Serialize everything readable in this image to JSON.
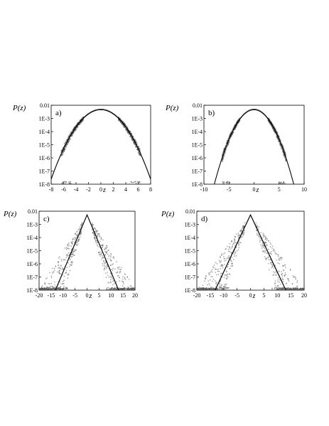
{
  "figure": {
    "background": "#ffffff",
    "ink_color": "#000000",
    "scatter_color": "#555555"
  },
  "chart_data": [
    {
      "type": "scatter",
      "panel_label": "a)",
      "ylabel": "P(z)",
      "xlabel": "z",
      "xlim": [
        -8,
        8
      ],
      "xticks": [
        -8,
        -6,
        -4,
        -2,
        0,
        2,
        4,
        6,
        8
      ],
      "ylim": [
        1e-08,
        0.01
      ],
      "y_scale": "log",
      "yticks": [
        "1E-8",
        "1E-7",
        "1E-6",
        "1E-5",
        "1E-4",
        "1E-3",
        "0.01"
      ],
      "series": [
        {
          "kind": "fit_curves",
          "sigma": 1.62,
          "peak": 0.0045,
          "points": [
            [
              -5.9,
              1e-08
            ],
            [
              -4,
              2e-05
            ],
            [
              -2,
              0.00211
            ],
            [
              0,
              0.0045
            ],
            [
              2,
              0.00211
            ],
            [
              4,
              2e-05
            ],
            [
              5.9,
              1e-08
            ]
          ]
        },
        {
          "kind": "scatter",
          "sigma": 1.62,
          "peak": 0.0045,
          "points": [
            [
              -5.5,
              5e-08
            ],
            [
              -5,
              2e-07
            ],
            [
              -4.5,
              2.5e-06
            ],
            [
              4.5,
              2.5e-06
            ],
            [
              5,
              2e-07
            ],
            [
              5.5,
              5e-08
            ],
            [
              6,
              1.5e-08
            ]
          ]
        }
      ]
    },
    {
      "type": "scatter",
      "panel_label": "b)",
      "ylabel": "P(z)",
      "xlabel": "z",
      "xlim": [
        -10,
        10
      ],
      "xticks": [
        -10,
        -5,
        0,
        5,
        10
      ],
      "ylim": [
        1e-08,
        0.01
      ],
      "y_scale": "log",
      "yticks": [
        "1E-8",
        "1E-7",
        "1E-6",
        "1E-5",
        "1E-4",
        "1E-3",
        "0.01"
      ],
      "series": [
        {
          "kind": "fit_curves",
          "sigma": 1.55,
          "peak": 0.0045,
          "points": [
            [
              -5.7,
              1e-08
            ],
            [
              -4,
              1.6e-05
            ],
            [
              -2,
              0.00198
            ],
            [
              0,
              0.0045
            ],
            [
              2,
              0.00198
            ],
            [
              4,
              1.6e-05
            ],
            [
              5.7,
              1e-08
            ]
          ]
        },
        {
          "kind": "scatter",
          "sigma": 1.55,
          "peak": 0.0045,
          "points": [
            [
              -6,
              1.5e-08
            ],
            [
              -5,
              2e-07
            ],
            [
              -4.5,
              1.5e-06
            ],
            [
              4.5,
              1.5e-06
            ],
            [
              5,
              2e-07
            ],
            [
              6,
              1.5e-08
            ]
          ]
        }
      ]
    },
    {
      "type": "scatter",
      "panel_label": "c)",
      "ylabel": "P(z)",
      "xlabel": "z",
      "xlim": [
        -20,
        20
      ],
      "xticks": [
        -20,
        -15,
        -10,
        -5,
        0,
        5,
        10,
        15,
        20
      ],
      "ylim": [
        1e-08,
        0.01
      ],
      "y_scale": "log",
      "yticks": [
        "1E-8",
        "1E-7",
        "1E-6",
        "1E-5",
        "1E-4",
        "1E-3",
        "0.01"
      ],
      "series": [
        {
          "kind": "fit_curves",
          "model": "exponential",
          "scale": 1.0,
          "peak": 0.005,
          "points": [
            [
              -11.3,
              1e-08
            ],
            [
              -5,
              5e-05
            ],
            [
              -2,
              0.0009
            ],
            [
              0,
              0.005
            ],
            [
              2,
              0.0009
            ],
            [
              5,
              5e-05
            ],
            [
              11.3,
              1e-08
            ]
          ]
        },
        {
          "kind": "scatter",
          "model": "exponential",
          "scale": 1.0,
          "peak": 0.005,
          "points": [
            [
              -17,
              1e-08
            ],
            [
              -12,
              4e-08
            ],
            [
              -9,
              2e-07
            ],
            [
              9,
              2e-07
            ],
            [
              12,
              4e-08
            ],
            [
              17,
              1e-08
            ]
          ]
        }
      ]
    },
    {
      "type": "scatter",
      "panel_label": "d)",
      "ylabel": "P(z)",
      "xlabel": "z",
      "xlim": [
        -20,
        20
      ],
      "xticks": [
        -20,
        -15,
        -10,
        -5,
        0,
        5,
        10,
        15,
        20
      ],
      "ylim": [
        1e-08,
        0.01
      ],
      "y_scale": "log",
      "yticks": [
        "1E-8",
        "1E-7",
        "1E-6",
        "1E-5",
        "1E-4",
        "1E-3",
        "0.01"
      ],
      "series": [
        {
          "kind": "fit_curves",
          "model": "exponential",
          "scale": 1.0,
          "peak": 0.005,
          "points": [
            [
              -11.3,
              1e-08
            ],
            [
              -5,
              5e-05
            ],
            [
              -2,
              0.0009
            ],
            [
              0,
              0.005
            ],
            [
              2,
              0.0009
            ],
            [
              5,
              5e-05
            ],
            [
              11.3,
              1e-08
            ]
          ]
        },
        {
          "kind": "scatter",
          "model": "exponential",
          "scale": 1.0,
          "peak": 0.005,
          "points": [
            [
              -18,
              1e-08
            ],
            [
              -13,
              3e-08
            ],
            [
              -10,
              2e-07
            ],
            [
              10,
              2e-07
            ],
            [
              13,
              3e-08
            ],
            [
              18,
              1e-08
            ]
          ]
        }
      ]
    }
  ]
}
